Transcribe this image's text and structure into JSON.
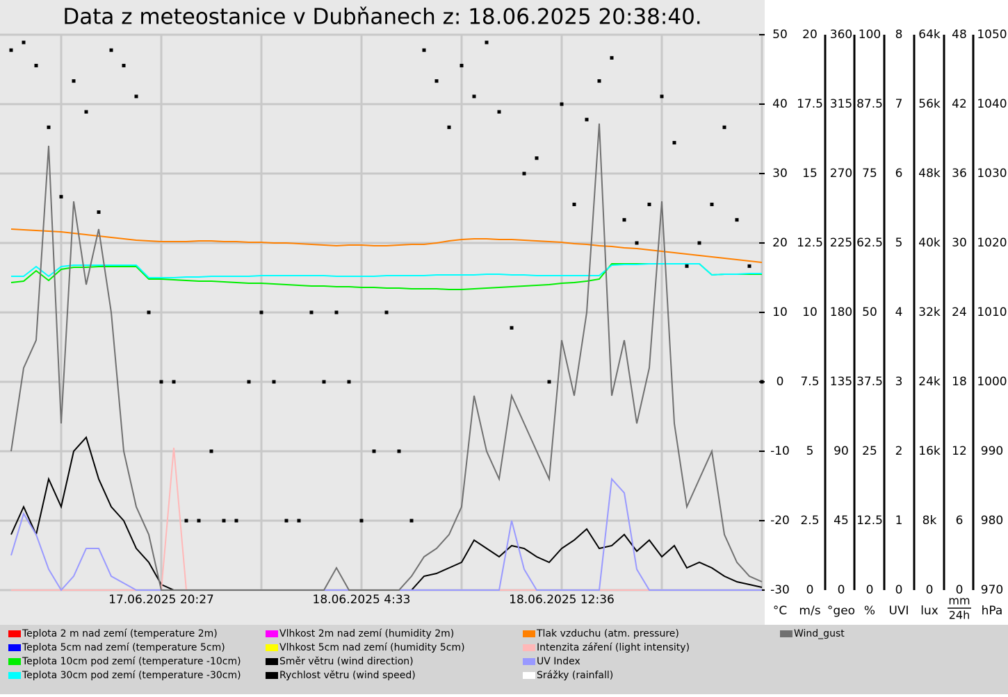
{
  "chart_data": {
    "type": "line",
    "title": "Data z meteostanice v Dubňanech z: 18.06.2025 20:38:40.",
    "categories": [
      null,
      null,
      null,
      null,
      null,
      null,
      null,
      null,
      null,
      null,
      null,
      null,
      "17.06.2025 20:27",
      null,
      null,
      null,
      null,
      null,
      null,
      null,
      null,
      null,
      null,
      null,
      null,
      null,
      null,
      null,
      "18.06.2025 4:33",
      null,
      null,
      null,
      null,
      null,
      null,
      null,
      null,
      null,
      null,
      null,
      null,
      null,
      null,
      null,
      "18.06.2025 12:36",
      null,
      null,
      null,
      null,
      null,
      null,
      null,
      null,
      null,
      null,
      null,
      null,
      null,
      null,
      null,
      null
    ],
    "grid": true,
    "axes": [
      {
        "unit": "°C",
        "lim": [
          -30,
          50
        ],
        "ticks": [
          -30,
          -20,
          -10,
          0,
          10,
          20,
          30,
          40,
          50
        ]
      },
      {
        "unit": "m/s",
        "lim": [
          0,
          20
        ],
        "ticks": [
          0,
          2.5,
          5,
          7.5,
          10,
          12.5,
          15,
          17.5,
          20
        ]
      },
      {
        "unit": "°geo",
        "lim": [
          0,
          360
        ],
        "ticks": [
          0,
          45,
          90,
          135,
          180,
          225,
          270,
          315,
          360
        ]
      },
      {
        "unit": "%",
        "lim": [
          0,
          100
        ],
        "ticks": [
          0,
          12.5,
          25,
          37.5,
          50,
          62.5,
          75,
          87.5,
          100
        ]
      },
      {
        "unit": "UVI",
        "lim": [
          0,
          8
        ],
        "ticks": [
          0,
          1,
          2,
          3,
          4,
          5,
          6,
          7,
          8
        ]
      },
      {
        "unit": "lux",
        "lim": [
          0,
          64000
        ],
        "ticks": [
          0,
          {
            "value": 8000,
            "label": "8k"
          },
          {
            "value": 16000,
            "label": "16k"
          },
          {
            "value": 24000,
            "label": "24k"
          },
          {
            "value": 32000,
            "label": "32k"
          },
          {
            "value": 40000,
            "label": "40k"
          },
          {
            "value": 48000,
            "label": "48k"
          },
          {
            "value": 56000,
            "label": "56k"
          },
          {
            "value": 64000,
            "label": "64k"
          }
        ]
      },
      {
        "unit": "mm",
        "unit_sub": "24h",
        "lim": [
          0,
          48
        ],
        "ticks": [
          0,
          6,
          12,
          18,
          24,
          30,
          36,
          42,
          48
        ]
      },
      {
        "unit": "hPa",
        "lim": [
          970,
          1050
        ],
        "ticks": [
          970,
          980,
          990,
          1000,
          1010,
          1020,
          1030,
          1040,
          1050
        ]
      }
    ],
    "series": [
      {
        "name": "Teplota 2 m nad zemí (temperature 2m)",
        "color": "#ff0000",
        "values": [
          null,
          null,
          null,
          null,
          null,
          null,
          null,
          null,
          null,
          null,
          null,
          null,
          null,
          null,
          null,
          null,
          null,
          null,
          null,
          null,
          null,
          null,
          null,
          null,
          null,
          null,
          null,
          null,
          null,
          null,
          null,
          null,
          null,
          null,
          null,
          null,
          null,
          null,
          null,
          null,
          null,
          null,
          null,
          null,
          null,
          null,
          null,
          null,
          null,
          null,
          null,
          null,
          null,
          null,
          null,
          null,
          null,
          null,
          null,
          null,
          null
        ]
      },
      {
        "name": "Teplota 5cm nad zemí (temperature 5cm)",
        "color": "#0000ff",
        "values": [
          null,
          null,
          null,
          null,
          null,
          null,
          null,
          null,
          null,
          null,
          null,
          null,
          null,
          null,
          null,
          null,
          null,
          null,
          null,
          null,
          null,
          null,
          null,
          null,
          null,
          null,
          null,
          null,
          null,
          null,
          null,
          null,
          null,
          null,
          null,
          null,
          null,
          null,
          null,
          null,
          null,
          null,
          null,
          null,
          null,
          null,
          null,
          null,
          null,
          null,
          null,
          null,
          null,
          null,
          null,
          null,
          null,
          null,
          null,
          null,
          null
        ]
      },
      {
        "name": "Teplota 10cm pod zemí (temperature -10cm)",
        "color": "#00ee00",
        "axis": "°C",
        "values": [
          14.3,
          14.5,
          16.0,
          14.6,
          16.2,
          16.5,
          16.5,
          16.6,
          16.6,
          16.6,
          16.6,
          14.8,
          14.8,
          14.7,
          14.6,
          14.5,
          14.5,
          14.4,
          14.3,
          14.2,
          14.2,
          14.1,
          14.0,
          13.9,
          13.8,
          13.8,
          13.7,
          13.7,
          13.6,
          13.6,
          13.5,
          13.5,
          13.4,
          13.4,
          13.4,
          13.3,
          13.3,
          13.4,
          13.5,
          13.6,
          13.7,
          13.8,
          13.9,
          14.0,
          14.2,
          14.3,
          14.5,
          14.8,
          17.0,
          17.0,
          17.0,
          17.0,
          17.0,
          17.0,
          17.0,
          17.0,
          15.4,
          15.5,
          15.5,
          15.5,
          15.5
        ]
      },
      {
        "name": "Teplota 30cm pod zemí (temperature -30cm)",
        "color": "#00ffff",
        "axis": "°C",
        "values": [
          15.2,
          15.2,
          16.6,
          15.2,
          16.6,
          16.8,
          16.8,
          16.8,
          16.8,
          16.8,
          16.8,
          15.0,
          15.0,
          15.0,
          15.1,
          15.1,
          15.2,
          15.2,
          15.2,
          15.2,
          15.3,
          15.3,
          15.3,
          15.3,
          15.3,
          15.3,
          15.2,
          15.2,
          15.2,
          15.2,
          15.3,
          15.3,
          15.3,
          15.3,
          15.4,
          15.4,
          15.4,
          15.4,
          15.5,
          15.5,
          15.4,
          15.4,
          15.3,
          15.3,
          15.3,
          15.3,
          15.3,
          15.3,
          16.8,
          16.9,
          16.9,
          17.0,
          17.0,
          17.0,
          17.0,
          17.0,
          15.4,
          15.5,
          15.5,
          15.6,
          15.6
        ]
      },
      {
        "name": "Vlhkost 2m nad zemí (humidity 2m)",
        "color": "#ff00ff",
        "values": [
          null,
          null,
          null,
          null,
          null,
          null,
          null,
          null,
          null,
          null,
          null,
          null,
          null,
          null,
          null,
          null,
          null,
          null,
          null,
          null,
          null,
          null,
          null,
          null,
          null,
          null,
          null,
          null,
          null,
          null,
          null,
          null,
          null,
          null,
          null,
          null,
          null,
          null,
          null,
          null,
          null,
          null,
          null,
          null,
          null,
          null,
          null,
          null,
          null,
          null,
          null,
          null,
          null,
          null,
          null,
          null,
          null,
          null,
          null,
          null,
          null
        ]
      },
      {
        "name": "Vlhkost 5cm nad zemí (humidity 5cm)",
        "color": "#ffff00",
        "values": [
          null,
          null,
          null,
          null,
          null,
          null,
          null,
          null,
          null,
          null,
          null,
          null,
          null,
          null,
          null,
          null,
          null,
          null,
          null,
          null,
          null,
          null,
          null,
          null,
          null,
          null,
          null,
          null,
          null,
          null,
          null,
          null,
          null,
          null,
          null,
          null,
          null,
          null,
          null,
          null,
          null,
          null,
          null,
          null,
          null,
          null,
          null,
          null,
          null,
          null,
          null,
          null,
          null,
          null,
          null,
          null,
          null,
          null,
          null,
          null,
          null
        ]
      },
      {
        "name": "Směr větru (wind direction)",
        "color": "#000000",
        "axis": "°geo",
        "marker": "square",
        "values": [
          350,
          355,
          340,
          300,
          255,
          330,
          310,
          245,
          350,
          340,
          320,
          180,
          135,
          135,
          45,
          45,
          90,
          45,
          45,
          135,
          180,
          135,
          45,
          45,
          180,
          135,
          180,
          135,
          45,
          90,
          180,
          90,
          45,
          350,
          330,
          300,
          340,
          320,
          355,
          310,
          170,
          270,
          280,
          135,
          315,
          250,
          305,
          330,
          345,
          240,
          225,
          250,
          320,
          290,
          210,
          225,
          250,
          300,
          240,
          210,
          135
        ]
      },
      {
        "name": "Rychlost větru (wind speed)",
        "color": "#000000",
        "axis": "m/s",
        "values": [
          2,
          3,
          2,
          4,
          3,
          5,
          5.5,
          4,
          3,
          2.5,
          1.5,
          1,
          0.2,
          0,
          0,
          0,
          0,
          0,
          0,
          0,
          0,
          0,
          0,
          0,
          0,
          0,
          0,
          0,
          0,
          0,
          0,
          0,
          0,
          0.5,
          0.6,
          0.8,
          1,
          1.8,
          1.5,
          1.2,
          1.6,
          1.5,
          1.2,
          1,
          1.5,
          1.8,
          2.2,
          1.5,
          1.6,
          2,
          1.4,
          1.8,
          1.2,
          1.6,
          0.8,
          1,
          0.8,
          0.5,
          0.3,
          0.2,
          0.1
        ]
      },
      {
        "name": "Tlak vzduchu (atm. pressure)",
        "color": "#ff8000",
        "axis": "hPa",
        "values": [
          1022.0,
          1021.9,
          1021.8,
          1021.7,
          1021.6,
          1021.4,
          1021.2,
          1021.0,
          1020.8,
          1020.6,
          1020.4,
          1020.3,
          1020.2,
          1020.2,
          1020.2,
          1020.3,
          1020.3,
          1020.2,
          1020.2,
          1020.1,
          1020.1,
          1020.0,
          1020.0,
          1019.9,
          1019.8,
          1019.7,
          1019.6,
          1019.7,
          1019.7,
          1019.6,
          1019.6,
          1019.7,
          1019.8,
          1019.8,
          1020.0,
          1020.3,
          1020.5,
          1020.6,
          1020.6,
          1020.5,
          1020.5,
          1020.4,
          1020.3,
          1020.2,
          1020.1,
          1019.9,
          1019.8,
          1019.6,
          1019.5,
          1019.3,
          1019.2,
          1019.0,
          1018.8,
          1018.6,
          1018.4,
          1018.2,
          1018.0,
          1017.8,
          1017.6,
          1017.4,
          1017.2
        ]
      },
      {
        "name": "Intenzita záření (light intensity)",
        "color": "#ffb8b8",
        "axis": "lux",
        "values": [
          0,
          0,
          0,
          0,
          0,
          0,
          0,
          0,
          0,
          0,
          0,
          0,
          0,
          16400,
          0,
          0,
          0,
          0,
          0,
          0,
          0,
          0,
          0,
          0,
          0,
          0,
          0,
          0,
          0,
          0,
          0,
          0,
          0,
          0,
          0,
          0,
          0,
          0,
          0,
          0,
          0,
          0,
          0,
          0,
          0,
          0,
          0,
          0,
          0,
          0,
          0,
          0,
          0,
          0,
          0,
          0,
          0,
          0,
          0,
          0,
          0
        ]
      },
      {
        "name": "UV Index",
        "color": "#9999ff",
        "axis": "UVI",
        "values": [
          0.5,
          1.1,
          0.8,
          0.3,
          0,
          0.2,
          0.6,
          0.6,
          0.2,
          0.1,
          0,
          0,
          0,
          0,
          0,
          0,
          0,
          0,
          0,
          0,
          0,
          0,
          0,
          0,
          0,
          0,
          0,
          0,
          0,
          0,
          0,
          0,
          0,
          0,
          0,
          0,
          0,
          0,
          0,
          0,
          1.0,
          0.3,
          0,
          0,
          0,
          0,
          0,
          0,
          1.6,
          1.4,
          0.3,
          0,
          0,
          0,
          0,
          0,
          0,
          0,
          0,
          0,
          0
        ]
      },
      {
        "name": "Srážky (rainfall)",
        "color": "#ffffff",
        "values": [
          null,
          null,
          null,
          null,
          null,
          null,
          null,
          null,
          null,
          null,
          null,
          null,
          null,
          null,
          null,
          null,
          null,
          null,
          null,
          null,
          null,
          null,
          null,
          null,
          null,
          null,
          null,
          null,
          null,
          null,
          null,
          null,
          null,
          null,
          null,
          null,
          null,
          null,
          null,
          null,
          null,
          null,
          null,
          null,
          null,
          null,
          null,
          null,
          null,
          null,
          null,
          null,
          null,
          null,
          null,
          null,
          null,
          null,
          null,
          null,
          null
        ]
      },
      {
        "name": "Wind_gust",
        "color": "#707070",
        "axis": "m/s",
        "values": [
          5,
          8,
          9,
          16,
          6,
          14,
          11,
          13,
          10,
          5,
          3,
          2,
          0,
          0,
          0,
          0,
          0,
          0,
          0,
          0,
          0,
          0,
          0,
          0,
          0,
          0,
          0.8,
          0,
          0,
          0,
          0,
          0,
          0.5,
          1.2,
          1.5,
          2,
          3,
          7,
          5,
          4,
          7,
          6,
          5,
          4,
          9,
          7,
          10,
          16.8,
          7,
          9,
          6,
          8,
          14,
          6,
          3,
          4,
          5,
          2,
          1,
          0.5,
          0.3
        ]
      }
    ]
  }
}
